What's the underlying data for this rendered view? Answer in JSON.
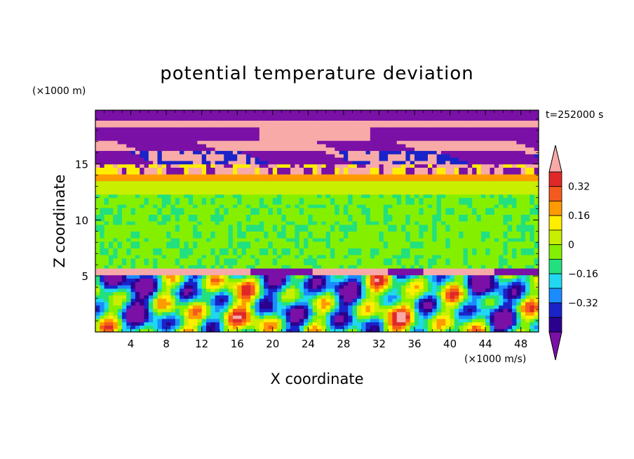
{
  "chart_data": {
    "type": "heatmap",
    "title": "potential temperature deviation",
    "xlabel": "X coordinate",
    "ylabel": "Z coordinate",
    "x_unit": "(×1000 m/s)",
    "y_unit": "(×1000 m)",
    "time_label": "t=252000 s",
    "xlim": [
      0,
      50
    ],
    "ylim": [
      0,
      19.8
    ],
    "x_ticks": [
      4,
      8,
      12,
      16,
      20,
      24,
      28,
      32,
      36,
      40,
      44,
      48
    ],
    "y_ticks": [
      5,
      10,
      15
    ],
    "colorbar": {
      "levels": [
        -0.48,
        -0.4,
        -0.32,
        -0.24,
        -0.16,
        -0.08,
        0,
        0.08,
        0.16,
        0.24,
        0.32,
        0.4,
        0.48
      ],
      "labeled_ticks": [
        0.32,
        0.16,
        0,
        -0.16,
        -0.32
      ],
      "colors": [
        "#7a10a6",
        "#2c008e",
        "#1a23c8",
        "#1a8cff",
        "#20d8f0",
        "#22e07e",
        "#84f000",
        "#c8ee00",
        "#ffee00",
        "#ff9a00",
        "#f45a1e",
        "#e02828",
        "#f8aaa8"
      ]
    },
    "bands": [
      {
        "z": [
          19.0,
          19.8
        ],
        "value": -0.5
      },
      {
        "z": [
          18.2,
          19.0
        ],
        "value": 0.5
      },
      {
        "z": [
          17.0,
          18.2
        ],
        "value": -0.5
      },
      {
        "z": [
          16.2,
          17.0
        ],
        "value": 0.5
      },
      {
        "z": [
          15.0,
          16.2
        ],
        "value": -0.5
      },
      {
        "z": [
          14.0,
          15.0
        ],
        "value": 0.5
      },
      {
        "z": [
          13.4,
          14.0
        ],
        "value": 0.3
      },
      {
        "z": [
          12.2,
          13.4
        ],
        "value": 0.12
      },
      {
        "z": [
          5.8,
          12.2
        ],
        "value": 0.02
      },
      {
        "z": [
          5.0,
          5.8
        ],
        "value": 0.5
      },
      {
        "z": [
          0,
          5.0
        ],
        "value": 0.0
      }
    ]
  }
}
